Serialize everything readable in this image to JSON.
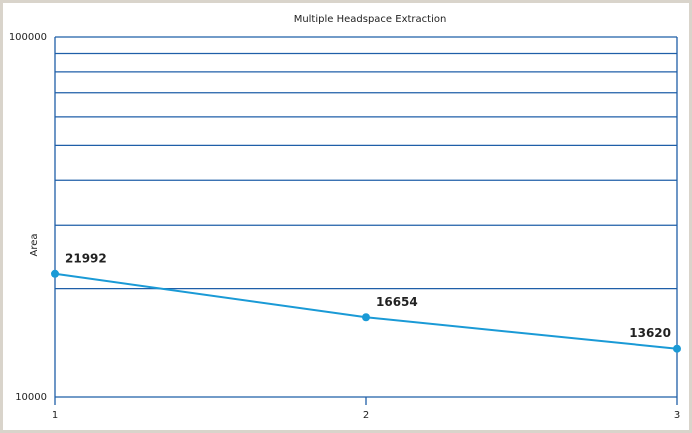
{
  "chart_data": {
    "type": "line",
    "title": "Multiple Headspace Extraction",
    "y_label": "Area",
    "x": [
      1,
      2,
      3
    ],
    "series": [
      {
        "name": "Area",
        "color": "#1a9ad6",
        "values": [
          21992,
          16654,
          13620
        ]
      }
    ],
    "xlim": [
      1,
      3
    ],
    "xticks": [
      1,
      2,
      3
    ],
    "ylim": [
      10000,
      100000
    ],
    "yticks": [
      10000,
      100000
    ],
    "log_y": true,
    "minor_yticks": [
      20000,
      30000,
      40000,
      50000,
      60000,
      70000,
      80000,
      90000
    ],
    "grid": true,
    "grid_color": "#1f5fa8",
    "data_labels": true
  }
}
